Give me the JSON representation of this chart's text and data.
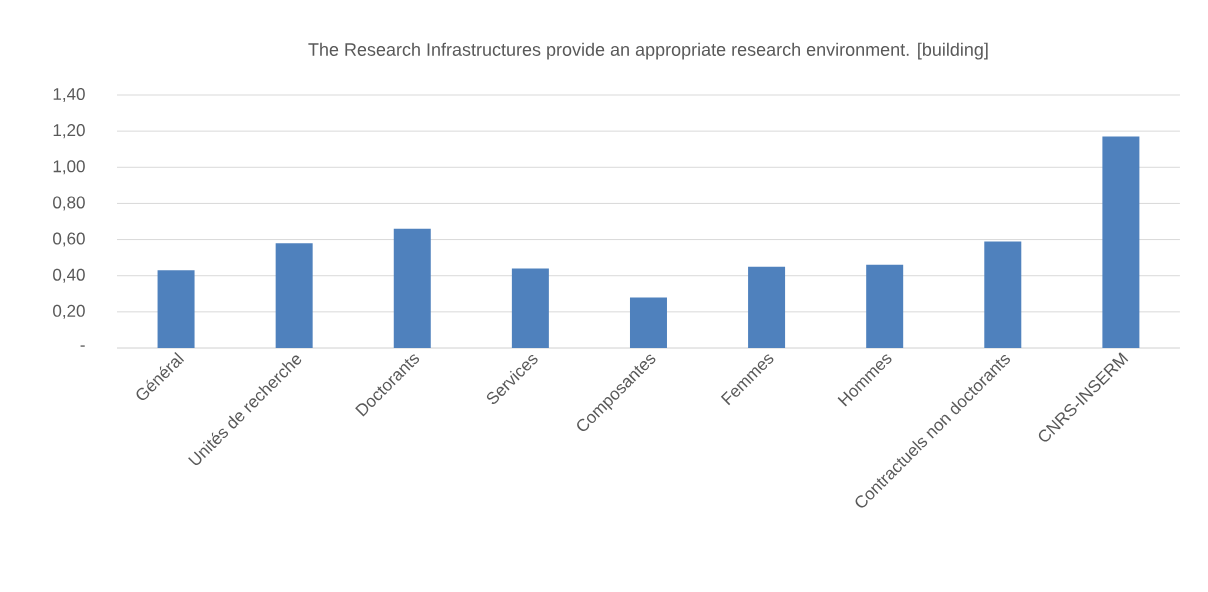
{
  "chart_data": {
    "type": "bar",
    "title": "The Research Infrastructures provide an appropriate research environment.    [building]",
    "categories": [
      "Général",
      "Unités de recherche",
      "Doctorants",
      "Services",
      "Composantes",
      "Femmes",
      "Hommes",
      "Contractuels non doctorants",
      "CNRS-INSERM"
    ],
    "values": [
      0.43,
      0.58,
      0.66,
      0.44,
      0.28,
      0.45,
      0.46,
      0.59,
      1.17
    ],
    "color": "#4f81bd",
    "ylim": [
      0,
      1.4
    ],
    "yticks": [
      {
        "value": 0,
        "label": "-"
      },
      {
        "value": 0.2,
        "label": "0,20"
      },
      {
        "value": 0.4,
        "label": "0,40"
      },
      {
        "value": 0.6,
        "label": "0,60"
      },
      {
        "value": 0.8,
        "label": "0,80"
      },
      {
        "value": 1.0,
        "label": "1,00"
      },
      {
        "value": 1.2,
        "label": "1,20"
      },
      {
        "value": 1.4,
        "label": "1,40"
      }
    ],
    "grid": "y"
  }
}
